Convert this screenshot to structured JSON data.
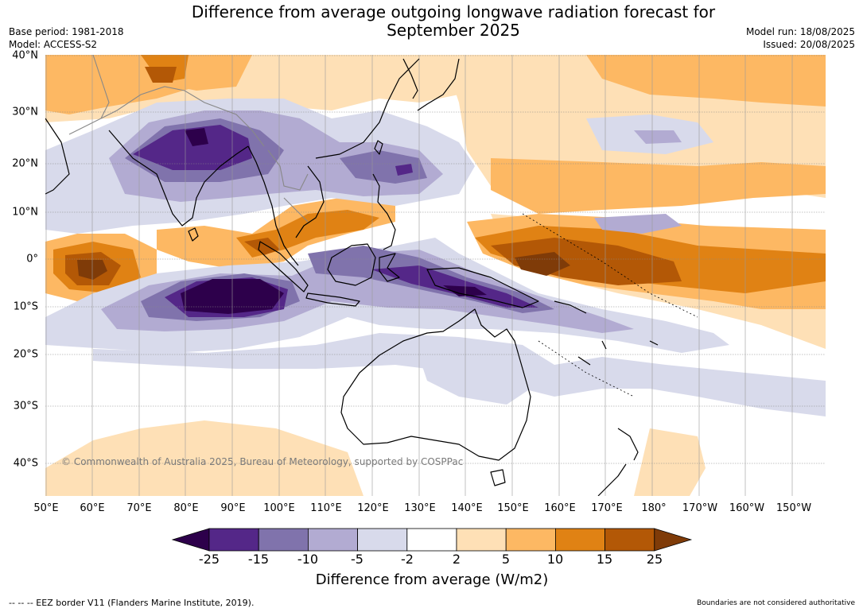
{
  "title": "Difference from average outgoing longwave radiation forecast for\nSeptember 2025",
  "meta_left": {
    "base_period": "Base period: 1981-2018",
    "model": "Model: ACCESS-S2"
  },
  "meta_right": {
    "model_run": "Model run: 18/08/2025",
    "issued": "Issued: 20/08/2025"
  },
  "map": {
    "lat_labels": [
      "40°N",
      "30°N",
      "20°N",
      "10°N",
      "0°",
      "10°S",
      "20°S",
      "30°S",
      "40°S"
    ],
    "lon_labels": [
      "50°E",
      "60°E",
      "70°E",
      "80°E",
      "90°E",
      "100°E",
      "110°E",
      "120°E",
      "130°E",
      "140°E",
      "150°E",
      "160°E",
      "170°E",
      "180°",
      "170°W",
      "160°W",
      "150°W"
    ],
    "copyright": "© Commonwealth of Australia 2025, Bureau of Meteorology, supported by COSPPac"
  },
  "legend": {
    "ticks": [
      "-25",
      "-15",
      "-10",
      "-5",
      "-2",
      "2",
      "5",
      "10",
      "15",
      "25"
    ],
    "colors": [
      "#2d004b",
      "#542788",
      "#8073ac",
      "#b2abd2",
      "#d8daeb",
      "#ffffff",
      "#fee0b6",
      "#fdb863",
      "#e08214",
      "#b35806",
      "#7f3b08"
    ],
    "title": "Difference from average (W/m2)"
  },
  "footer": {
    "eez": "--  --  -- EEZ border V11 (Flanders Marine Institute, 2019).",
    "disclaimer": "Boundaries are not considered authoritative"
  }
}
